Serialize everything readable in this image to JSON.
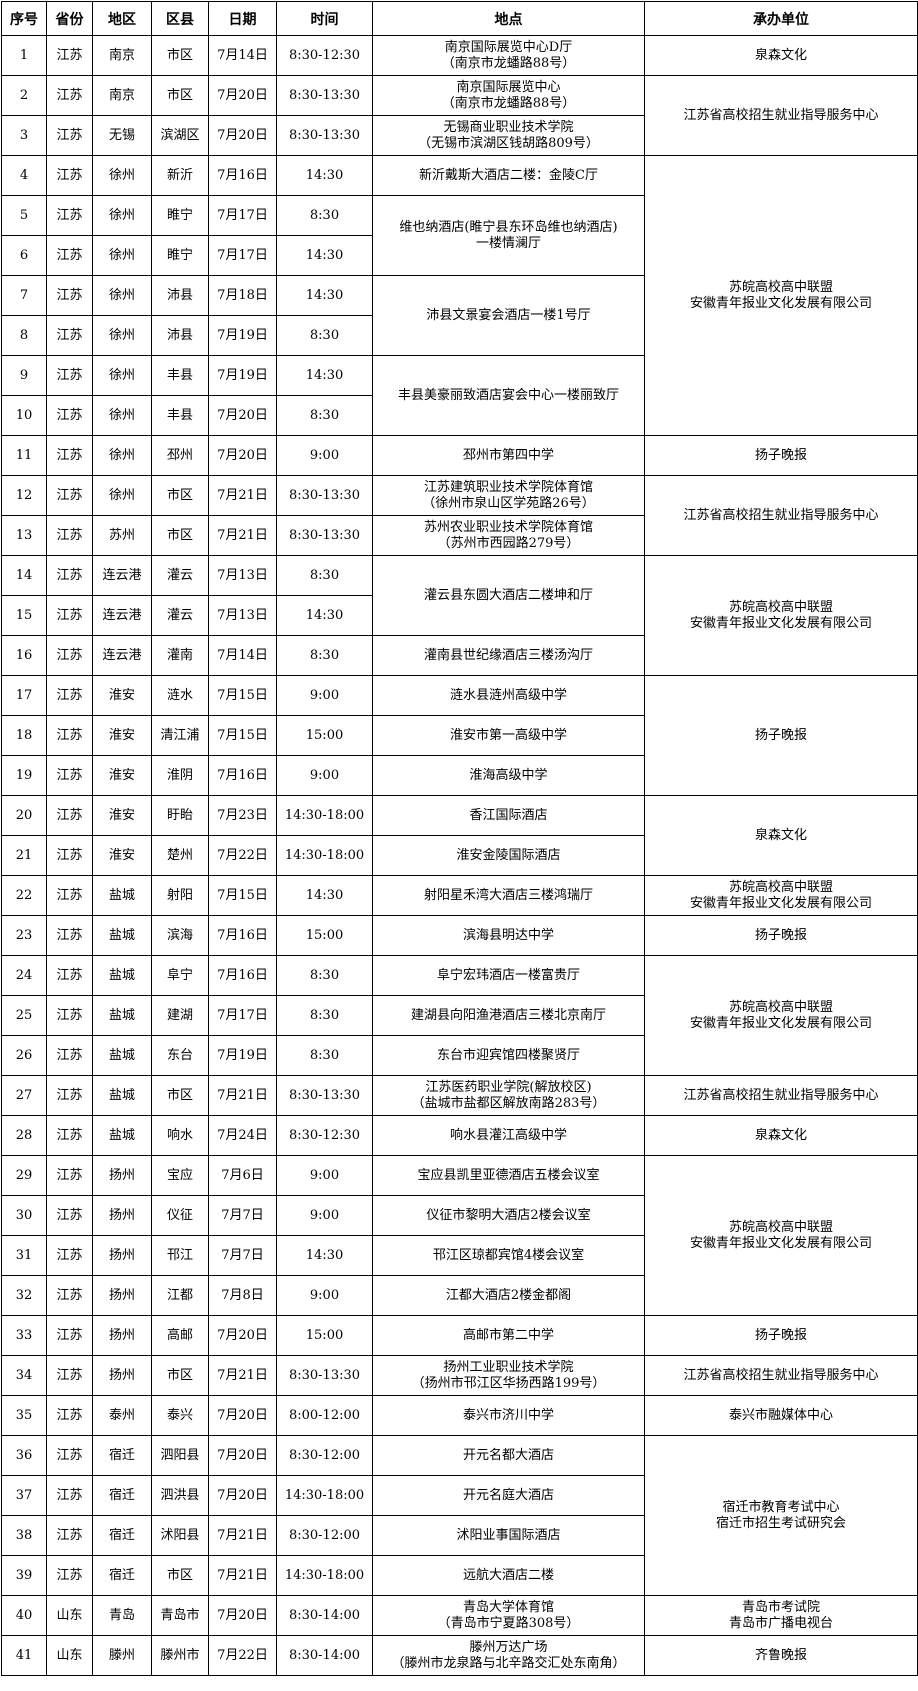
{
  "table": {
    "headers": [
      "序号",
      "省份",
      "地区",
      "区县",
      "日期",
      "时间",
      "地点",
      "承办单位"
    ],
    "rows": [
      {
        "no": "1",
        "province": "江苏",
        "region": "南京",
        "district": "市区",
        "date": "7月14日",
        "time": "8:30-12:30",
        "location": {
          "lines": [
            "南京国际展览中心D厅",
            "（南京市龙蟠路88号）"
          ],
          "span": 1
        },
        "organizer": {
          "lines": [
            "泉森文化"
          ],
          "span": 1
        }
      },
      {
        "no": "2",
        "province": "江苏",
        "region": "南京",
        "district": "市区",
        "date": "7月20日",
        "time": "8:30-13:30",
        "location": {
          "lines": [
            "南京国际展览中心",
            "（南京市龙蟠路88号）"
          ],
          "span": 1
        },
        "organizer": {
          "lines": [
            "江苏省高校招生就业指导服务中心"
          ],
          "span": 2
        }
      },
      {
        "no": "3",
        "province": "江苏",
        "region": "无锡",
        "district": "滨湖区",
        "date": "7月20日",
        "time": "8:30-13:30",
        "location": {
          "lines": [
            "无锡商业职业技术学院",
            "（无锡市滨湖区钱胡路809号）"
          ],
          "span": 1
        }
      },
      {
        "no": "4",
        "province": "江苏",
        "region": "徐州",
        "district": "新沂",
        "date": "7月16日",
        "time": "14:30",
        "location": {
          "lines": [
            "新沂戴斯大酒店二楼：金陵C厅"
          ],
          "span": 1
        },
        "organizer": {
          "lines": [
            "苏皖高校高中联盟",
            "安徽青年报业文化发展有限公司"
          ],
          "span": 7
        }
      },
      {
        "no": "5",
        "province": "江苏",
        "region": "徐州",
        "district": "睢宁",
        "date": "7月17日",
        "time": "8:30",
        "location": {
          "lines": [
            "维也纳酒店(睢宁县东环岛维也纳酒店)",
            "一楼情澜厅"
          ],
          "span": 2
        }
      },
      {
        "no": "6",
        "province": "江苏",
        "region": "徐州",
        "district": "睢宁",
        "date": "7月17日",
        "time": "14:30"
      },
      {
        "no": "7",
        "province": "江苏",
        "region": "徐州",
        "district": "沛县",
        "date": "7月18日",
        "time": "14:30",
        "location": {
          "lines": [
            "沛县文景宴会酒店一楼1号厅"
          ],
          "span": 2
        }
      },
      {
        "no": "8",
        "province": "江苏",
        "region": "徐州",
        "district": "沛县",
        "date": "7月19日",
        "time": "8:30"
      },
      {
        "no": "9",
        "province": "江苏",
        "region": "徐州",
        "district": "丰县",
        "date": "7月19日",
        "time": "14:30",
        "location": {
          "lines": [
            "丰县美豪丽致酒店宴会中心一楼丽致厅"
          ],
          "span": 2
        }
      },
      {
        "no": "10",
        "province": "江苏",
        "region": "徐州",
        "district": "丰县",
        "date": "7月20日",
        "time": "8:30"
      },
      {
        "no": "11",
        "province": "江苏",
        "region": "徐州",
        "district": "邳州",
        "date": "7月20日",
        "time": "9:00",
        "location": {
          "lines": [
            "邳州市第四中学"
          ],
          "span": 1
        },
        "organizer": {
          "lines": [
            "扬子晚报"
          ],
          "span": 1
        }
      },
      {
        "no": "12",
        "province": "江苏",
        "region": "徐州",
        "district": "市区",
        "date": "7月21日",
        "time": "8:30-13:30",
        "location": {
          "lines": [
            "江苏建筑职业技术学院体育馆",
            "（徐州市泉山区学苑路26号）"
          ],
          "span": 1
        },
        "organizer": {
          "lines": [
            "江苏省高校招生就业指导服务中心"
          ],
          "span": 2
        }
      },
      {
        "no": "13",
        "province": "江苏",
        "region": "苏州",
        "district": "市区",
        "date": "7月21日",
        "time": "8:30-13:30",
        "location": {
          "lines": [
            "苏州农业职业技术学院体育馆",
            "（苏州市西园路279号）"
          ],
          "span": 1
        }
      },
      {
        "no": "14",
        "province": "江苏",
        "region": "连云港",
        "district": "灌云",
        "date": "7月13日",
        "time": "8:30",
        "location": {
          "lines": [
            "灌云县东圆大酒店二楼坤和厅"
          ],
          "span": 2
        },
        "organizer": {
          "lines": [
            "苏皖高校高中联盟",
            "安徽青年报业文化发展有限公司"
          ],
          "span": 3
        }
      },
      {
        "no": "15",
        "province": "江苏",
        "region": "连云港",
        "district": "灌云",
        "date": "7月13日",
        "time": "14:30"
      },
      {
        "no": "16",
        "province": "江苏",
        "region": "连云港",
        "district": "灌南",
        "date": "7月14日",
        "time": "8:30",
        "location": {
          "lines": [
            "灌南县世纪缘酒店三楼汤沟厅"
          ],
          "span": 1
        }
      },
      {
        "no": "17",
        "province": "江苏",
        "region": "淮安",
        "district": "涟水",
        "date": "7月15日",
        "time": "9:00",
        "location": {
          "lines": [
            "涟水县涟州高级中学"
          ],
          "span": 1
        },
        "organizer": {
          "lines": [
            "扬子晚报"
          ],
          "span": 3
        }
      },
      {
        "no": "18",
        "province": "江苏",
        "region": "淮安",
        "district": "清江浦",
        "date": "7月15日",
        "time": "15:00",
        "location": {
          "lines": [
            "淮安市第一高级中学"
          ],
          "span": 1
        }
      },
      {
        "no": "19",
        "province": "江苏",
        "region": "淮安",
        "district": "淮阴",
        "date": "7月16日",
        "time": "9:00",
        "location": {
          "lines": [
            "淮海高级中学"
          ],
          "span": 1
        }
      },
      {
        "no": "20",
        "province": "江苏",
        "region": "淮安",
        "district": "盱眙",
        "date": "7月23日",
        "time": "14:30-18:00",
        "location": {
          "lines": [
            "香江国际酒店"
          ],
          "span": 1
        },
        "organizer": {
          "lines": [
            "泉森文化"
          ],
          "span": 2
        }
      },
      {
        "no": "21",
        "province": "江苏",
        "region": "淮安",
        "district": "楚州",
        "date": "7月22日",
        "time": "14:30-18:00",
        "location": {
          "lines": [
            "淮安金陵国际酒店"
          ],
          "span": 1
        }
      },
      {
        "no": "22",
        "province": "江苏",
        "region": "盐城",
        "district": "射阳",
        "date": "7月15日",
        "time": "14:30",
        "location": {
          "lines": [
            "射阳星禾湾大酒店三楼鸿瑞厅"
          ],
          "span": 1
        },
        "organizer": {
          "lines": [
            "苏皖高校高中联盟",
            "安徽青年报业文化发展有限公司"
          ],
          "span": 1
        }
      },
      {
        "no": "23",
        "province": "江苏",
        "region": "盐城",
        "district": "滨海",
        "date": "7月16日",
        "time": "15:00",
        "location": {
          "lines": [
            "滨海县明达中学"
          ],
          "span": 1
        },
        "organizer": {
          "lines": [
            "扬子晚报"
          ],
          "span": 1
        }
      },
      {
        "no": "24",
        "province": "江苏",
        "region": "盐城",
        "district": "阜宁",
        "date": "7月16日",
        "time": "8:30",
        "location": {
          "lines": [
            "阜宁宏玮酒店一楼富贵厅"
          ],
          "span": 1
        },
        "organizer": {
          "lines": [
            "苏皖高校高中联盟",
            "安徽青年报业文化发展有限公司"
          ],
          "span": 3
        }
      },
      {
        "no": "25",
        "province": "江苏",
        "region": "盐城",
        "district": "建湖",
        "date": "7月17日",
        "time": "8:30",
        "location": {
          "lines": [
            "建湖县向阳渔港酒店三楼北京南厅"
          ],
          "span": 1
        }
      },
      {
        "no": "26",
        "province": "江苏",
        "region": "盐城",
        "district": "东台",
        "date": "7月19日",
        "time": "8:30",
        "location": {
          "lines": [
            "东台市迎宾馆四楼聚贤厅"
          ],
          "span": 1
        }
      },
      {
        "no": "27",
        "province": "江苏",
        "region": "盐城",
        "district": "市区",
        "date": "7月21日",
        "time": "8:30-13:30",
        "location": {
          "lines": [
            "江苏医药职业学院(解放校区)",
            "（盐城市盐都区解放南路283号）"
          ],
          "span": 1
        },
        "organizer": {
          "lines": [
            "江苏省高校招生就业指导服务中心"
          ],
          "span": 1
        }
      },
      {
        "no": "28",
        "province": "江苏",
        "region": "盐城",
        "district": "响水",
        "date": "7月24日",
        "time": "8:30-12:30",
        "location": {
          "lines": [
            "响水县灌江高级中学"
          ],
          "span": 1
        },
        "organizer": {
          "lines": [
            "泉森文化"
          ],
          "span": 1
        }
      },
      {
        "no": "29",
        "province": "江苏",
        "region": "扬州",
        "district": "宝应",
        "date": "7月6日",
        "time": "9:00",
        "location": {
          "lines": [
            "宝应县凯里亚德酒店五楼会议室"
          ],
          "span": 1
        },
        "organizer": {
          "lines": [
            "苏皖高校高中联盟",
            "安徽青年报业文化发展有限公司"
          ],
          "span": 4
        }
      },
      {
        "no": "30",
        "province": "江苏",
        "region": "扬州",
        "district": "仪征",
        "date": "7月7日",
        "time": "9:00",
        "location": {
          "lines": [
            "仪征市黎明大酒店2楼会议室"
          ],
          "span": 1
        }
      },
      {
        "no": "31",
        "province": "江苏",
        "region": "扬州",
        "district": "邗江",
        "date": "7月7日",
        "time": "14:30",
        "location": {
          "lines": [
            "邗江区琼都宾馆4楼会议室"
          ],
          "span": 1
        }
      },
      {
        "no": "32",
        "province": "江苏",
        "region": "扬州",
        "district": "江都",
        "date": "7月8日",
        "time": "9:00",
        "location": {
          "lines": [
            "江都大酒店2楼金都阁"
          ],
          "span": 1
        }
      },
      {
        "no": "33",
        "province": "江苏",
        "region": "扬州",
        "district": "高邮",
        "date": "7月20日",
        "time": "15:00",
        "location": {
          "lines": [
            "高邮市第二中学"
          ],
          "span": 1
        },
        "organizer": {
          "lines": [
            "扬子晚报"
          ],
          "span": 1
        }
      },
      {
        "no": "34",
        "province": "江苏",
        "region": "扬州",
        "district": "市区",
        "date": "7月21日",
        "time": "8:30-13:30",
        "location": {
          "lines": [
            "扬州工业职业技术学院",
            "（扬州市邗江区华扬西路199号）"
          ],
          "span": 1
        },
        "organizer": {
          "lines": [
            "江苏省高校招生就业指导服务中心"
          ],
          "span": 1
        }
      },
      {
        "no": "35",
        "province": "江苏",
        "region": "泰州",
        "district": "泰兴",
        "date": "7月20日",
        "time": "8:00-12:00",
        "location": {
          "lines": [
            "泰兴市济川中学"
          ],
          "span": 1
        },
        "organizer": {
          "lines": [
            "泰兴市融媒体中心"
          ],
          "span": 1
        }
      },
      {
        "no": "36",
        "province": "江苏",
        "region": "宿迁",
        "district": "泗阳县",
        "date": "7月20日",
        "time": "8:30-12:00",
        "location": {
          "lines": [
            "开元名都大酒店"
          ],
          "span": 1
        },
        "organizer": {
          "lines": [
            "宿迁市教育考试中心",
            "宿迁市招生考试研究会"
          ],
          "span": 4
        }
      },
      {
        "no": "37",
        "province": "江苏",
        "region": "宿迁",
        "district": "泗洪县",
        "date": "7月20日",
        "time": "14:30-18:00",
        "location": {
          "lines": [
            "开元名庭大酒店"
          ],
          "span": 1
        }
      },
      {
        "no": "38",
        "province": "江苏",
        "region": "宿迁",
        "district": "沭阳县",
        "date": "7月21日",
        "time": "8:30-12:00",
        "location": {
          "lines": [
            "沭阳业事国际酒店"
          ],
          "span": 1
        }
      },
      {
        "no": "39",
        "province": "江苏",
        "region": "宿迁",
        "district": "市区",
        "date": "7月21日",
        "time": "14:30-18:00",
        "location": {
          "lines": [
            "远航大酒店二楼"
          ],
          "span": 1
        }
      },
      {
        "no": "40",
        "province": "山东",
        "region": "青岛",
        "district": "青岛市",
        "date": "7月20日",
        "time": "8:30-14:00",
        "location": {
          "lines": [
            "青岛大学体育馆",
            "（青岛市宁夏路308号）"
          ],
          "span": 1
        },
        "organizer": {
          "lines": [
            "青岛市考试院",
            "青岛市广播电视台"
          ],
          "span": 1
        }
      },
      {
        "no": "41",
        "province": "山东",
        "region": "滕州",
        "district": "滕州市",
        "date": "7月22日",
        "time": "8:30-14:00",
        "location": {
          "lines": [
            "滕州万达广场",
            "（滕州市龙泉路与北辛路交汇处东南角）"
          ],
          "span": 1
        },
        "organizer": {
          "lines": [
            "齐鲁晚报"
          ],
          "span": 1
        }
      }
    ]
  }
}
